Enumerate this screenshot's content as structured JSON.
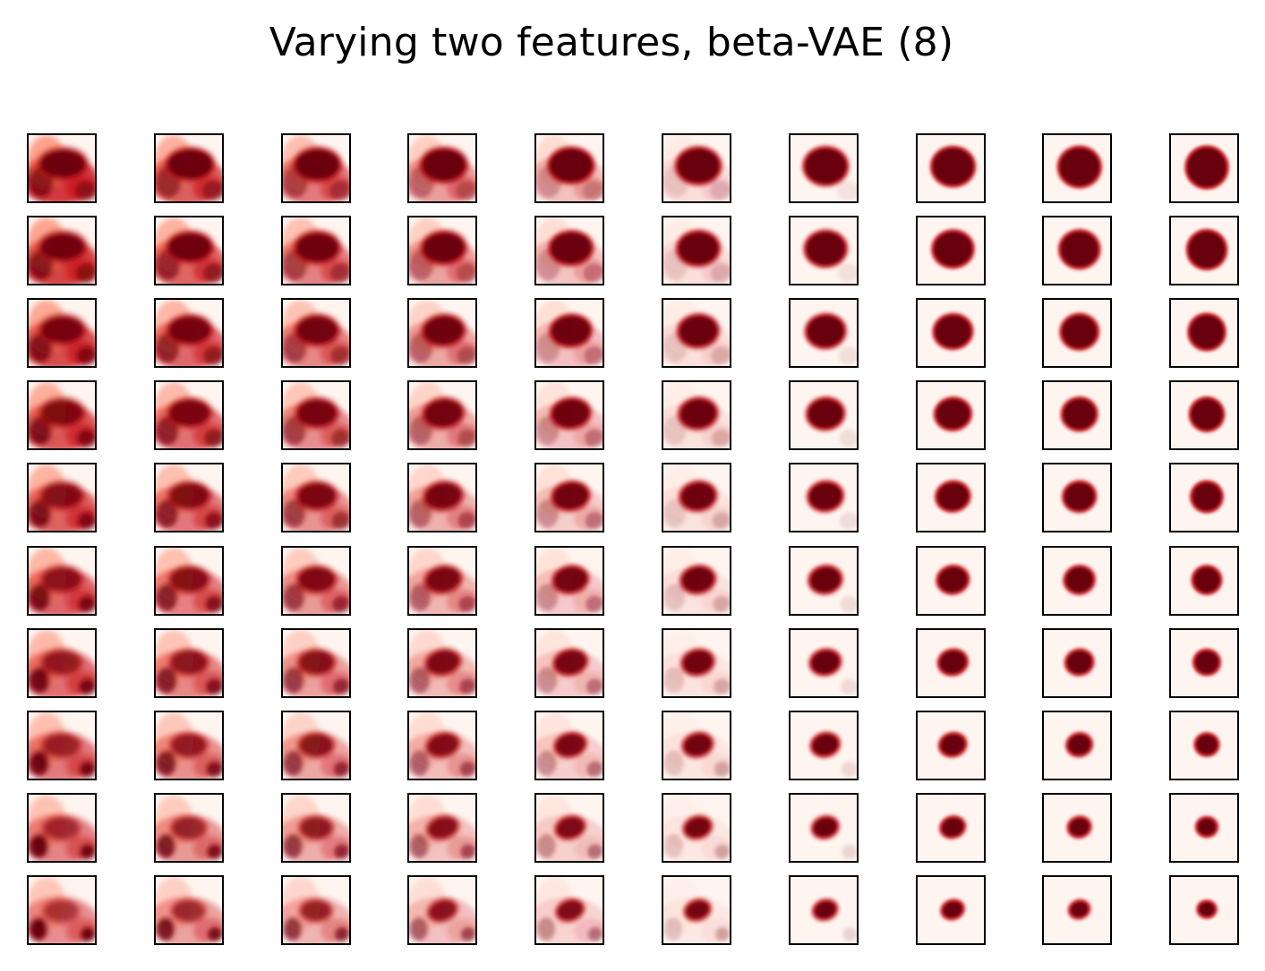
{
  "title": "Varying two features, beta-VAE (8)",
  "colormap": [
    "#fff5f0",
    "#fcbba1",
    "#fb6a4a",
    "#cb181d",
    "#67000d"
  ],
  "grid": {
    "rows": 10,
    "cols": 10
  }
}
